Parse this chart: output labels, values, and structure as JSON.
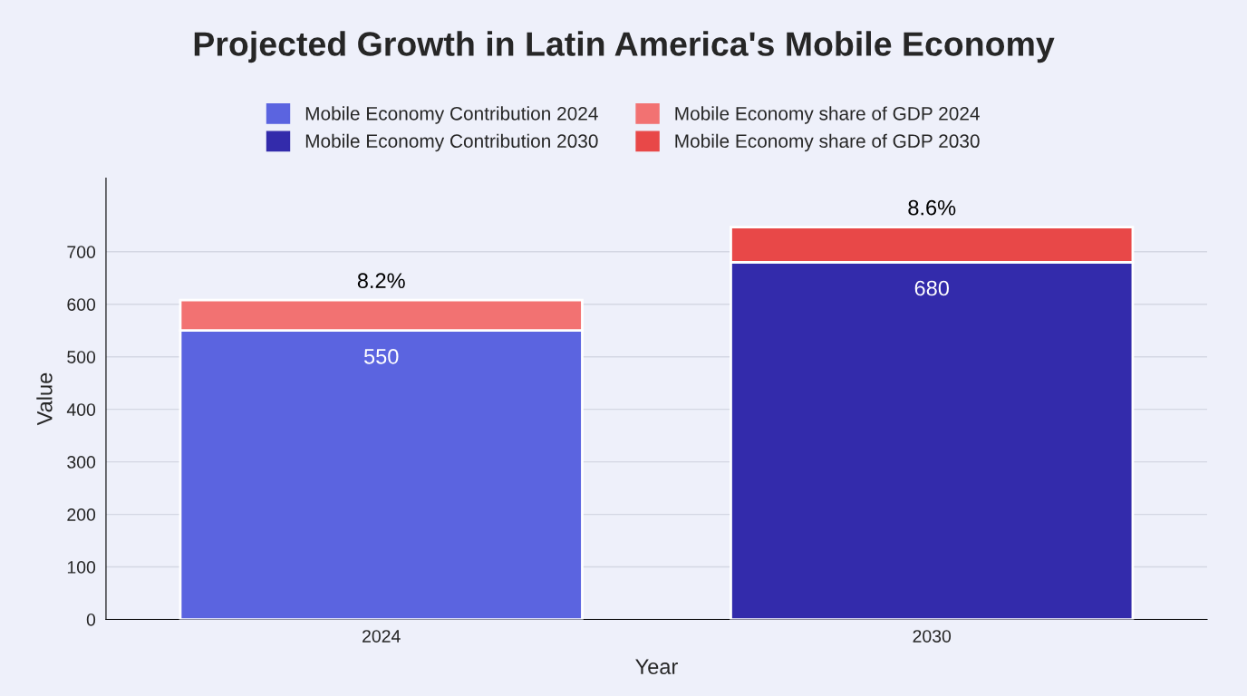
{
  "chart_data": {
    "type": "bar",
    "title": "Projected Growth in Latin America's Mobile Economy",
    "xlabel": "Year",
    "ylabel": "Value",
    "categories": [
      "2024",
      "2030"
    ],
    "stacked": true,
    "series": [
      {
        "name": "Mobile Economy Contribution 2024",
        "color": "#5b64e0",
        "values": [
          550,
          null
        ],
        "value_labels": [
          "550",
          null
        ]
      },
      {
        "name": "Mobile Economy Contribution 2030",
        "color": "#332bab",
        "values": [
          null,
          680
        ],
        "value_labels": [
          null,
          "680"
        ]
      },
      {
        "name": "Mobile Economy share of GDP 2024",
        "color": "#f27272",
        "values": [
          58,
          null
        ]
      },
      {
        "name": "Mobile Economy share of GDP 2030",
        "color": "#e84848",
        "values": [
          null,
          67
        ]
      }
    ],
    "annotations": [
      {
        "text": "8.2%",
        "x": "2024",
        "y": 608
      },
      {
        "text": "8.6%",
        "x": "2030",
        "y": 747
      }
    ],
    "ylim": [
      0,
      840
    ],
    "yticks": [
      0,
      100,
      200,
      300,
      400,
      500,
      600,
      700
    ],
    "grid": "y",
    "legend": "top"
  }
}
